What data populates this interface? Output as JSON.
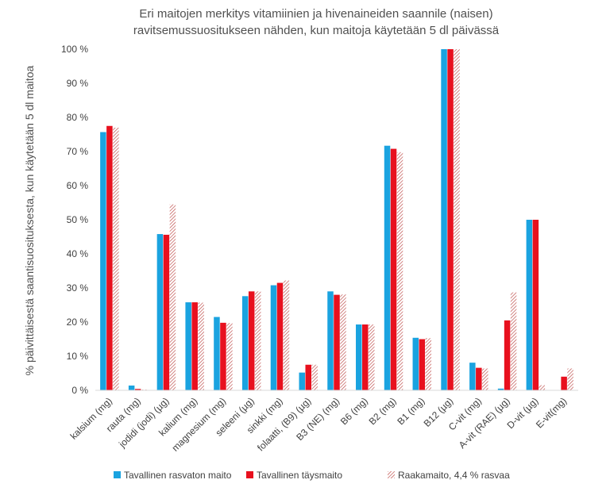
{
  "chart_data": {
    "type": "bar",
    "title_lines": [
      "Eri maitojen merkitys vitamiinien ja hivenaineiden saannile (naisen)",
      "ravitsemussuositukseen nähden, kun maitoja käytetään 5 dl päivässä"
    ],
    "ylabel": "% päivittäisestä saantisuosituksesta, kun käytetään 5 dl maitoa",
    "xlabel": "",
    "ylim": [
      0,
      100
    ],
    "yticks": [
      "0 %",
      "10 %",
      "20 %",
      "30 %",
      "40 %",
      "50 %",
      "60 %",
      "70 %",
      "80 %",
      "90 %",
      "100 %"
    ],
    "grid": false,
    "legend_position": "bottom",
    "categories": [
      "kalsium (mg)",
      "rauta (mg)",
      "jodidi (jodi) (µg)",
      "kalium (mg)",
      "magnesium (mg)",
      "seleeni (µg)",
      "sinkki (mg)",
      "folaatti, (B9) (µg)",
      "B3 (NE) (mg)",
      "B6 (mg)",
      "B2 (mg)",
      "B1 (mg)",
      "B12 (µg)",
      "C-vit (mg)",
      "A-vit (RAE) (µg)",
      "D-vit (µg)",
      "E-vit(mg)"
    ],
    "series": [
      {
        "name": "Tavallinen rasvaton maito",
        "color": "#1aa3e0",
        "fill": "solid",
        "values": [
          75.7,
          1.4,
          45.8,
          25.8,
          21.5,
          27.6,
          30.8,
          5.2,
          29.0,
          19.3,
          71.7,
          15.4,
          100,
          8.1,
          0.5,
          50.0,
          0
        ]
      },
      {
        "name": "Tavallinen täysmaito",
        "color": "#e8101e",
        "fill": "solid",
        "values": [
          77.5,
          0.4,
          45.6,
          25.8,
          19.8,
          29.0,
          31.5,
          7.5,
          28.0,
          19.3,
          70.8,
          15.0,
          100,
          6.6,
          20.5,
          50.0,
          4.0
        ]
      },
      {
        "name": "Raakamaito, 4,4 % rasvaa",
        "color": "#c0504d",
        "fill": "hatched",
        "values": [
          77.0,
          0.2,
          54.5,
          25.7,
          19.7,
          29.0,
          32.2,
          7.5,
          28.1,
          19.3,
          69.8,
          15.3,
          100,
          6.4,
          28.7,
          1.5,
          6.4
        ]
      }
    ]
  }
}
